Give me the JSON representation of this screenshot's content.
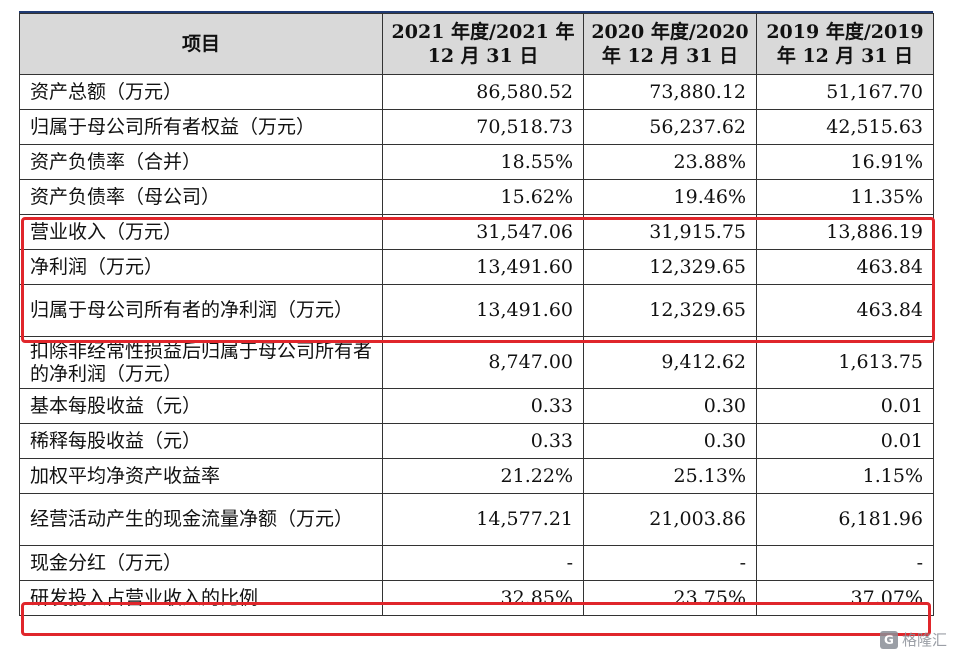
{
  "header": {
    "item": "项目",
    "col1": "2021 年度/2021 年 12 月 31 日",
    "col2": "2020 年度/2020 年 12 月 31 日",
    "col3": "2019 年度/2019 年 12 月 31 日"
  },
  "rows": [
    {
      "label": "资产总额（万元）",
      "v2021": "86,580.52",
      "v2020": "73,880.12",
      "v2019": "51,167.70"
    },
    {
      "label": "归属于母公司所有者权益（万元）",
      "v2021": "70,518.73",
      "v2020": "56,237.62",
      "v2019": "42,515.63"
    },
    {
      "label": "资产负债率（合并）",
      "v2021": "18.55%",
      "v2020": "23.88%",
      "v2019": "16.91%"
    },
    {
      "label": "资产负债率（母公司）",
      "v2021": "15.62%",
      "v2020": "19.46%",
      "v2019": "11.35%"
    },
    {
      "label": "营业收入（万元）",
      "v2021": "31,547.06",
      "v2020": "31,915.75",
      "v2019": "13,886.19"
    },
    {
      "label": "净利润（万元）",
      "v2021": "13,491.60",
      "v2020": "12,329.65",
      "v2019": "463.84"
    },
    {
      "label": "归属于母公司所有者的净利润（万元）",
      "v2021": "13,491.60",
      "v2020": "12,329.65",
      "v2019": "463.84"
    },
    {
      "label": "扣除非经常性损益后归属于母公司所有者的净利润（万元）",
      "v2021": "8,747.00",
      "v2020": "9,412.62",
      "v2019": "1,613.75"
    },
    {
      "label": "基本每股收益（元）",
      "v2021": "0.33",
      "v2020": "0.30",
      "v2019": "0.01"
    },
    {
      "label": "稀释每股收益（元）",
      "v2021": "0.33",
      "v2020": "0.30",
      "v2019": "0.01"
    },
    {
      "label": "加权平均净资产收益率",
      "v2021": "21.22%",
      "v2020": "25.13%",
      "v2019": "1.15%"
    },
    {
      "label": "经营活动产生的现金流量净额（万元）",
      "v2021": "14,577.21",
      "v2020": "21,003.86",
      "v2019": "6,181.96"
    },
    {
      "label": "现金分红（万元）",
      "v2021": "-",
      "v2020": "-",
      "v2019": "-"
    },
    {
      "label": "研发投入占营业收入的比例",
      "v2021": "32.85%",
      "v2020": "23.75%",
      "v2019": "37.07%"
    }
  ],
  "highlight_color": "#e0262b",
  "watermark": {
    "icon": "gelonghui-logo-icon",
    "logo_text": "G",
    "text": "格隆汇"
  }
}
